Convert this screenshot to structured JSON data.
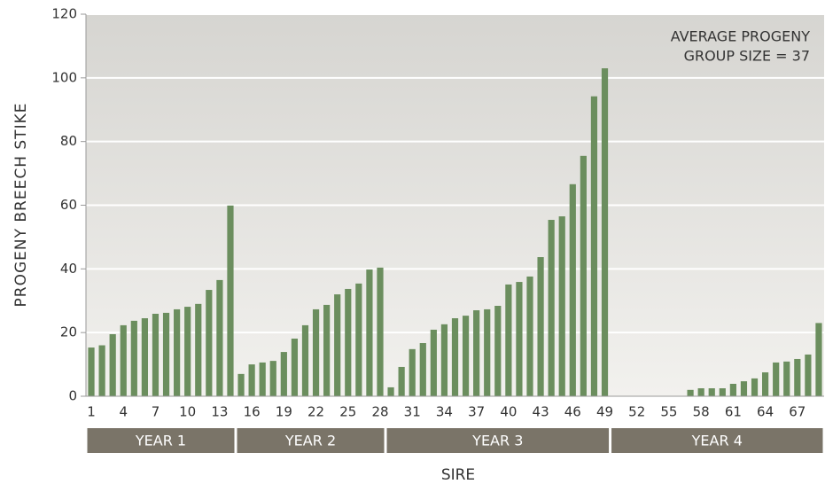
{
  "chart_data": {
    "type": "bar",
    "y_label": "PROGENY BREECH STIKE",
    "x_label": "SIRE",
    "annotation": [
      "AVERAGE PROGENY",
      "GROUP SIZE = 37"
    ],
    "categories": [
      "1",
      null,
      null,
      "4",
      null,
      null,
      "7",
      null,
      null,
      "10",
      null,
      null,
      "13",
      null,
      null,
      "16",
      null,
      null,
      "19",
      null,
      null,
      "22",
      null,
      null,
      "25",
      null,
      null,
      "28",
      null,
      null,
      "31",
      null,
      null,
      "34",
      null,
      null,
      "37",
      null,
      null,
      "40",
      null,
      null,
      "43",
      null,
      null,
      "46",
      null,
      null,
      "49",
      null,
      null,
      "52",
      null,
      null,
      "55",
      null,
      null,
      "58",
      null,
      null,
      "61",
      null,
      null,
      "64",
      null,
      null,
      "67",
      null,
      null
    ],
    "values": [
      15.3,
      16,
      19.5,
      22.3,
      23.7,
      24.5,
      25.9,
      26.2,
      27.3,
      28.1,
      29,
      33.4,
      36.5,
      59.9,
      7,
      10,
      10.6,
      11.1,
      13.9,
      18.1,
      22.3,
      27.3,
      28.7,
      32,
      33.7,
      35.4,
      39.8,
      40.4,
      2.8,
      9.2,
      14.8,
      16.7,
      20.9,
      22.6,
      24.5,
      25.3,
      27,
      27.3,
      28.4,
      35.1,
      35.9,
      37.6,
      43.7,
      55.4,
      56.5,
      66.6,
      75.5,
      94.2,
      103,
      0,
      0,
      0,
      0,
      0,
      0,
      0,
      2,
      2.5,
      2.5,
      2.5,
      3.9,
      4.7,
      5.6,
      7.5,
      10.6,
      10.9,
      11.7,
      13.1,
      23
    ],
    "groups": [
      {
        "label": "YEAR 1",
        "sires": 14
      },
      {
        "label": "YEAR 2",
        "sires": 14
      },
      {
        "label": "YEAR 3",
        "sires": 21
      },
      {
        "label": "YEAR 4",
        "sires": 20
      }
    ],
    "color": "#6b8e5e",
    "group_color": "#7a7468",
    "ylim": [
      0,
      120
    ],
    "yticks": [
      0,
      20,
      40,
      60,
      80,
      100,
      120
    ],
    "grid": true
  }
}
